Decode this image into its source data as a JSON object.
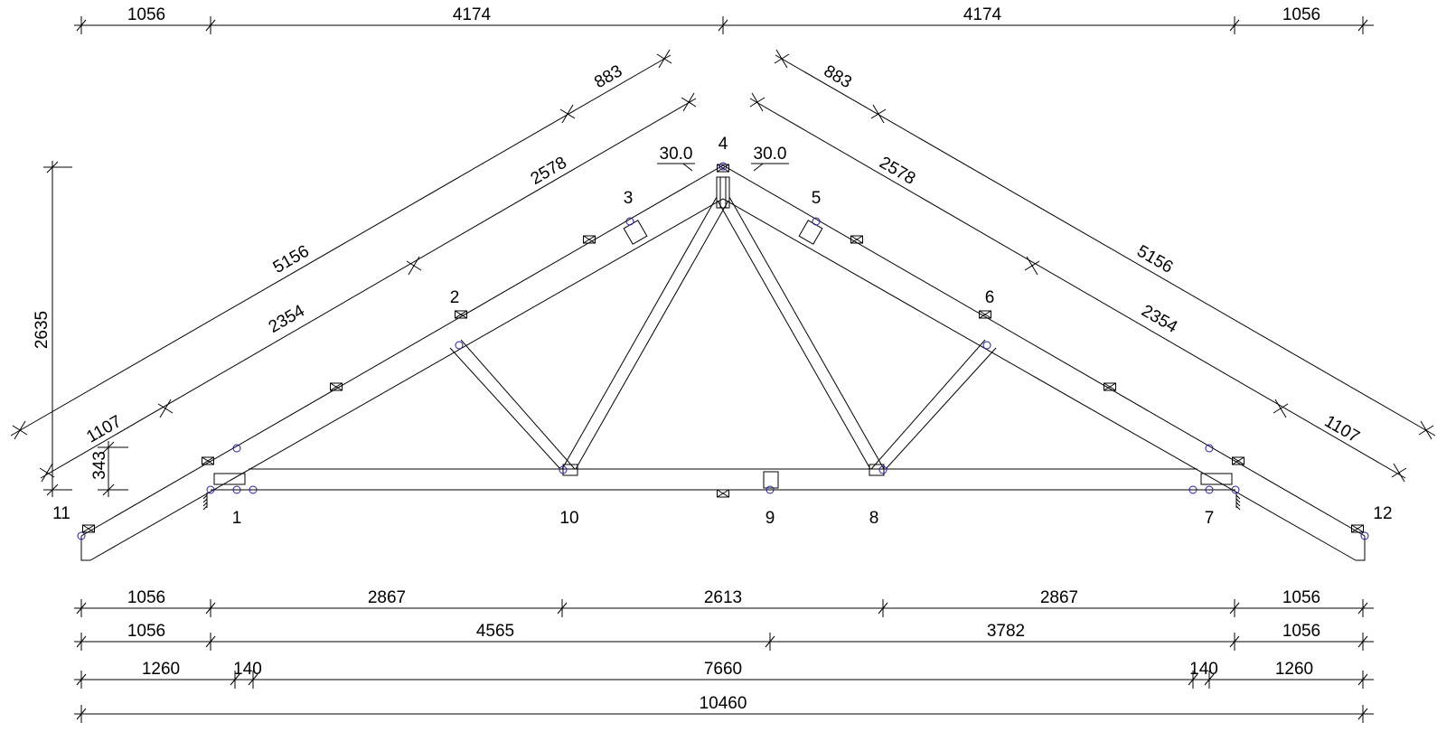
{
  "top_dims": [
    1056,
    4174,
    4174,
    1056
  ],
  "left_slope_dims": {
    "outer": [
      5156,
      883
    ],
    "inner": [
      1107,
      2354,
      2578
    ]
  },
  "right_slope_dims": {
    "outer": [
      5156,
      883
    ],
    "inner": [
      1107,
      2354,
      2578
    ]
  },
  "angles": [
    "30.0",
    "30.0"
  ],
  "vertical_dims": [
    2635,
    343
  ],
  "nodes": [
    "1",
    "2",
    "3",
    "4",
    "5",
    "6",
    "7",
    "8",
    "9",
    "10",
    "11",
    "12"
  ],
  "bottom_dims": [
    [
      1056,
      2867,
      2613,
      2867,
      1056
    ],
    [
      1056,
      4565,
      3782,
      1056
    ],
    [
      1260,
      140,
      7660,
      140,
      1260
    ],
    [
      10460
    ]
  ]
}
